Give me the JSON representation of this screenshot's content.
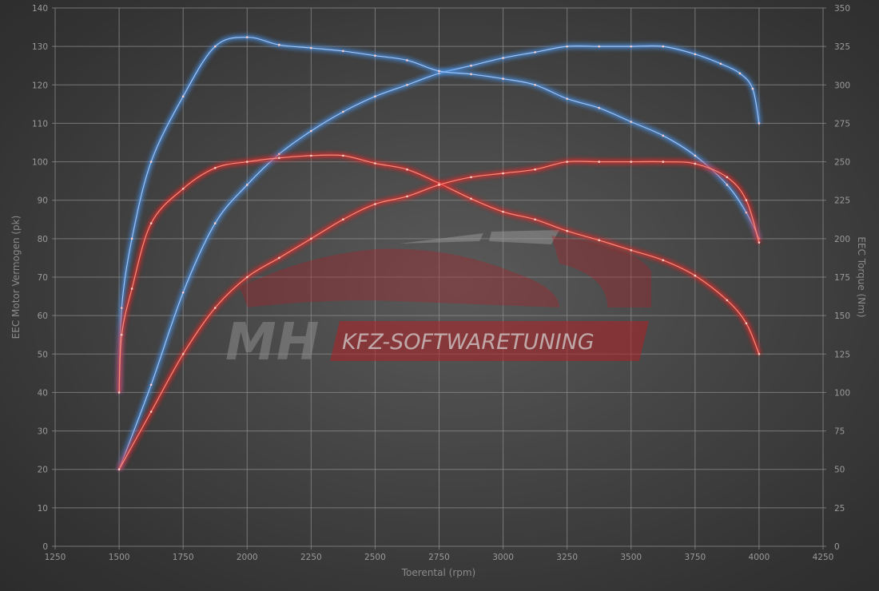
{
  "chart_data": {
    "type": "line",
    "xlabel": "Toerental (rpm)",
    "ylabel_left": "EEC Motor Vermogen (pk)",
    "ylabel_right": "EEC Torque (Nm)",
    "xlim": [
      1250,
      4250
    ],
    "ylim_left": [
      0,
      140
    ],
    "ylim_right": [
      0,
      350
    ],
    "x_ticks": [
      1250,
      1500,
      1750,
      2000,
      2250,
      2500,
      2750,
      3000,
      3250,
      3500,
      3750,
      4000,
      4250
    ],
    "y_ticks_left": [
      0,
      10,
      20,
      30,
      40,
      50,
      60,
      70,
      80,
      90,
      100,
      110,
      120,
      130,
      140
    ],
    "y_ticks_right": [
      0,
      25,
      50,
      75,
      100,
      125,
      150,
      175,
      200,
      225,
      250,
      275,
      300,
      325,
      350
    ],
    "grid": true,
    "series": [
      {
        "axis": "left",
        "color": "#4a8fe0",
        "x": [
          1500,
          1625,
          1750,
          1875,
          2000,
          2125,
          2250,
          2375,
          2500,
          2625,
          2750,
          2875,
          3000,
          3125,
          3250,
          3375,
          3500,
          3625,
          3750,
          3850,
          3925,
          3975,
          4000
        ],
        "y": [
          20,
          42,
          66,
          84,
          94,
          102,
          108,
          113,
          117,
          120,
          123,
          125,
          127,
          128.5,
          130,
          130,
          130,
          130,
          128,
          125.5,
          123,
          119,
          110
        ]
      },
      {
        "axis": "right",
        "color": "#4a8fe0",
        "x": [
          1500,
          1510,
          1550,
          1625,
          1750,
          1875,
          2000,
          2125,
          2250,
          2375,
          2500,
          2625,
          2750,
          2875,
          3000,
          3125,
          3250,
          3375,
          3500,
          3625,
          3750,
          3875,
          3950,
          4000
        ],
        "y": [
          100,
          155,
          200,
          250,
          292.5,
          325,
          331,
          326,
          324,
          322,
          319,
          316,
          309,
          307,
          304,
          300,
          291,
          285,
          276,
          267,
          254,
          235,
          217,
          200
        ]
      },
      {
        "axis": "right",
        "color": "#e02a2a",
        "x": [
          1500,
          1510,
          1550,
          1625,
          1750,
          1875,
          2000,
          2125,
          2250,
          2375,
          2500,
          2625,
          2750,
          2875,
          3000,
          3125,
          3250,
          3375,
          3500,
          3625,
          3750,
          3875,
          3950,
          4000
        ],
        "y": [
          100,
          137.5,
          167.5,
          210,
          232.5,
          246,
          250,
          252.5,
          254,
          254,
          249,
          245,
          236,
          226,
          217.5,
          212.5,
          205,
          199,
          192.5,
          186,
          176,
          160,
          145,
          125
        ]
      },
      {
        "axis": "left",
        "color": "#e02a2a",
        "x": [
          1500,
          1625,
          1750,
          1875,
          2000,
          2125,
          2250,
          2375,
          2500,
          2625,
          2750,
          2875,
          3000,
          3125,
          3250,
          3375,
          3500,
          3625,
          3750,
          3875,
          3950,
          4000
        ],
        "y": [
          20,
          35,
          50,
          62,
          70,
          75,
          80,
          85,
          89,
          91,
          94,
          96,
          97,
          98,
          100,
          100,
          100,
          100,
          99.5,
          96,
          90,
          79
        ]
      }
    ]
  },
  "watermark": {
    "mark": "MH",
    "text": "KFZ-SOFTWARETUNING",
    "accent": "#c0262b"
  }
}
